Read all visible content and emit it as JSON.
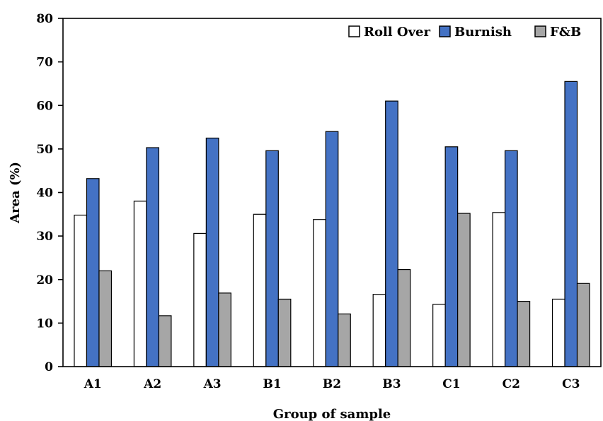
{
  "chart_data": {
    "type": "bar",
    "title": "",
    "xlabel": "Group of sample",
    "ylabel": "Area (%)",
    "ylim": [
      0,
      80
    ],
    "yticks": [
      "0",
      "10",
      "20",
      "30",
      "40",
      "50",
      "60",
      "70",
      "80"
    ],
    "categories": [
      "A1",
      "A2",
      "A3",
      "B1",
      "B2",
      "B3",
      "C1",
      "C2",
      "C3"
    ],
    "series": [
      {
        "name": "Roll Over",
        "color": "#ffffff",
        "values": [
          34.8,
          38.0,
          30.6,
          35.0,
          33.8,
          16.6,
          14.3,
          35.4,
          15.5
        ]
      },
      {
        "name": "Burnish",
        "color": "#4472c4",
        "values": [
          43.2,
          50.3,
          52.5,
          49.6,
          54.0,
          61.0,
          50.5,
          49.6,
          65.5
        ]
      },
      {
        "name": "F&B",
        "color": "#a6a6a6",
        "values": [
          22.0,
          11.7,
          16.9,
          15.5,
          12.1,
          22.3,
          35.2,
          15.0,
          19.1
        ]
      }
    ],
    "grid": false,
    "legend_position": "top-right"
  }
}
